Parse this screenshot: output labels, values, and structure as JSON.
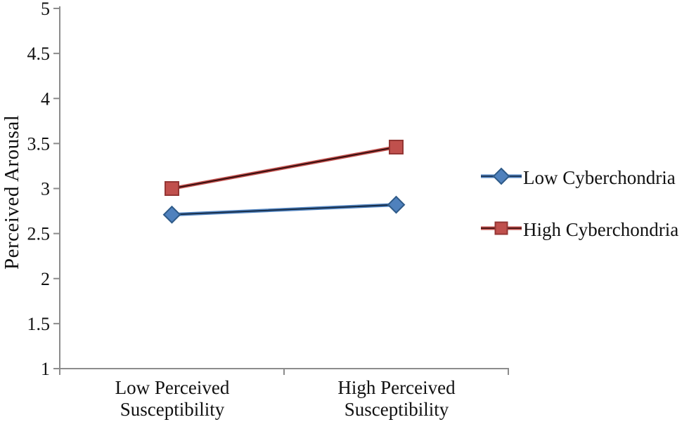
{
  "chart_data": {
    "type": "line",
    "ylabel": "Perceived Arousal",
    "ylim": [
      1,
      5
    ],
    "y_tick_step": 0.5,
    "y_ticks": [
      "1",
      "1.5",
      "2",
      "2.5",
      "3",
      "3.5",
      "4",
      "4.5",
      "5"
    ],
    "categories": [
      "Low Perceived Susceptibility",
      "High Perceived Susceptibility"
    ],
    "series": [
      {
        "name": "Low Cyberchondria",
        "values": [
          2.71,
          2.82
        ],
        "color": "#4F81BD",
        "edge_color": "#2E5A88",
        "core_color": "#12263F",
        "marker": "diamond"
      },
      {
        "name": "High Cyberchondria",
        "values": [
          3.0,
          3.46
        ],
        "color": "#C0504D",
        "edge_color": "#943634",
        "core_color": "#2A0808",
        "marker": "square"
      }
    ],
    "legend_position": "right",
    "grid": false,
    "axis_color": "#8C8C8C",
    "text_color": "#111111"
  }
}
